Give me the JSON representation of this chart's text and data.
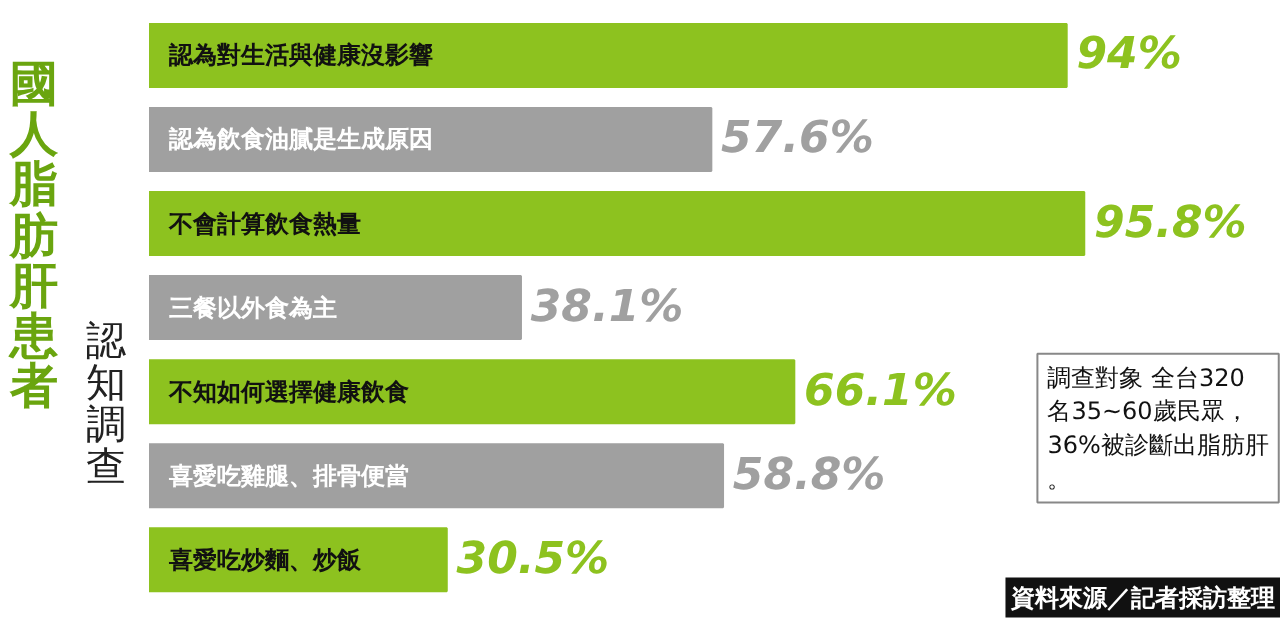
{
  "chart_data": {
    "type": "bar",
    "orientation": "horizontal",
    "title": "國人脂肪肝患者",
    "subtitle": "認知調查",
    "categories": [
      "認為對生活與健康沒影響",
      "認為飲食油膩是生成原因",
      "不會計算飲食熱量",
      "三餐以外食為主",
      "不知如何選擇健康飲食",
      "喜愛吃雞腿、排骨便當",
      "喜愛吃炒麵、炒飯"
    ],
    "values": [
      94,
      57.6,
      95.8,
      38.1,
      66.1,
      58.8,
      30.5
    ],
    "colors": [
      "#8dc21f",
      "#a0a0a0",
      "#8dc21f",
      "#a0a0a0",
      "#8dc21f",
      "#a0a0a0",
      "#8dc21f"
    ],
    "value_labels": [
      "94%",
      "57.6%",
      "95.8%",
      "38.1%",
      "66.1%",
      "58.8%",
      "30.5%"
    ],
    "annotations": [
      "調查對象 全台320名35~60歲民眾，36%被診斷出脂肪肝。",
      "資料來源／記者採訪整理"
    ]
  }
}
